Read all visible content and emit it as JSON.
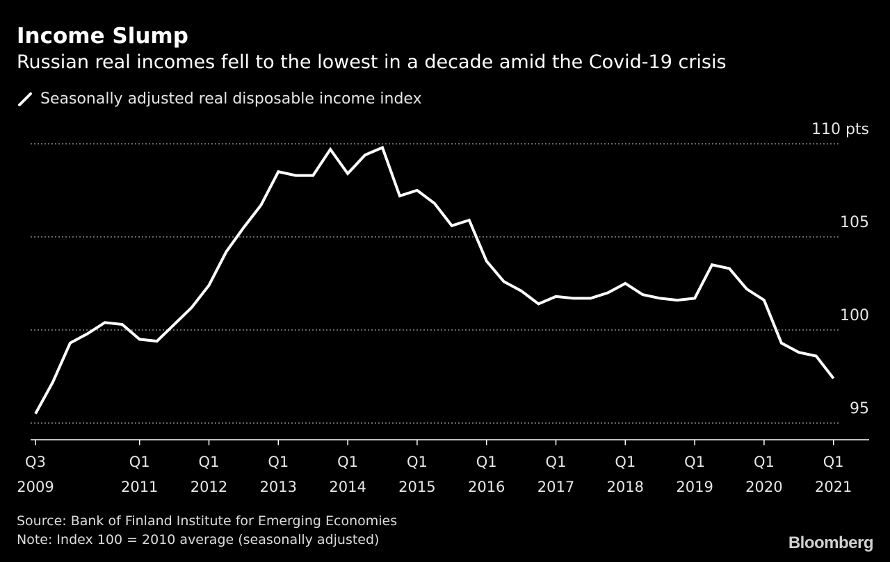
{
  "title": "Income Slump",
  "subtitle": "Russian real incomes fell to the lowest in a decade amid the Covid-19 crisis",
  "legend_label": "Seasonally adjusted real disposable income index",
  "source": "Source: Bank of Finland Institute for Emerging Economies",
  "note": "Note: Index 100 = 2010 average (seasonally adjusted)",
  "brand": "Bloomberg",
  "colors": {
    "background": "#000000",
    "line": "#ffffff",
    "grid": "#8a8a8a",
    "text": "#ffffff"
  },
  "chart_data": {
    "type": "line",
    "ylim": [
      93.8,
      110
    ],
    "grid": true,
    "y_ticks": [
      {
        "value": 110,
        "label": "110 pts"
      },
      {
        "value": 105,
        "label": "105"
      },
      {
        "value": 100,
        "label": "100"
      },
      {
        "value": 95,
        "label": "95"
      }
    ],
    "x_ticks": [
      {
        "period": "2009-Q3",
        "line1": "Q3",
        "line2": "2009"
      },
      {
        "period": "2011-Q1",
        "line1": "Q1",
        "line2": "2011"
      },
      {
        "period": "2012-Q1",
        "line1": "Q1",
        "line2": "2012"
      },
      {
        "period": "2013-Q1",
        "line1": "Q1",
        "line2": "2013"
      },
      {
        "period": "2014-Q1",
        "line1": "Q1",
        "line2": "2014"
      },
      {
        "period": "2015-Q1",
        "line1": "Q1",
        "line2": "2015"
      },
      {
        "period": "2016-Q1",
        "line1": "Q1",
        "line2": "2016"
      },
      {
        "period": "2017-Q1",
        "line1": "Q1",
        "line2": "2017"
      },
      {
        "period": "2018-Q1",
        "line1": "Q1",
        "line2": "2018"
      },
      {
        "period": "2019-Q1",
        "line1": "Q1",
        "line2": "2019"
      },
      {
        "period": "2020-Q1",
        "line1": "Q1",
        "line2": "2020"
      },
      {
        "period": "2021-Q1",
        "line1": "Q1",
        "line2": "2021"
      }
    ],
    "x": [
      "2009-Q3",
      "2009-Q4",
      "2010-Q1",
      "2010-Q2",
      "2010-Q3",
      "2010-Q4",
      "2011-Q1",
      "2011-Q2",
      "2011-Q3",
      "2011-Q4",
      "2012-Q1",
      "2012-Q2",
      "2012-Q3",
      "2012-Q4",
      "2013-Q1",
      "2013-Q2",
      "2013-Q3",
      "2013-Q4",
      "2014-Q1",
      "2014-Q2",
      "2014-Q3",
      "2014-Q4",
      "2015-Q1",
      "2015-Q2",
      "2015-Q3",
      "2015-Q4",
      "2016-Q1",
      "2016-Q2",
      "2016-Q3",
      "2016-Q4",
      "2017-Q1",
      "2017-Q2",
      "2017-Q3",
      "2017-Q4",
      "2018-Q1",
      "2018-Q2",
      "2018-Q3",
      "2018-Q4",
      "2019-Q1",
      "2019-Q2",
      "2019-Q3",
      "2019-Q4",
      "2020-Q1",
      "2020-Q2",
      "2020-Q3",
      "2020-Q4",
      "2021-Q1"
    ],
    "series": [
      {
        "name": "Seasonally adjusted real disposable income index",
        "values": [
          95.5,
          97.2,
          99.3,
          99.8,
          100.4,
          100.3,
          99.5,
          99.4,
          100.3,
          101.2,
          102.4,
          104.2,
          105.5,
          106.7,
          108.5,
          108.3,
          108.3,
          109.7,
          108.4,
          109.4,
          109.8,
          107.2,
          107.5,
          106.8,
          105.6,
          105.9,
          103.7,
          102.6,
          102.1,
          101.4,
          101.8,
          101.7,
          101.7,
          102.0,
          102.5,
          101.9,
          101.7,
          101.6,
          101.7,
          103.5,
          103.3,
          102.2,
          101.6,
          99.3,
          98.8,
          98.6,
          97.4
        ]
      }
    ]
  }
}
